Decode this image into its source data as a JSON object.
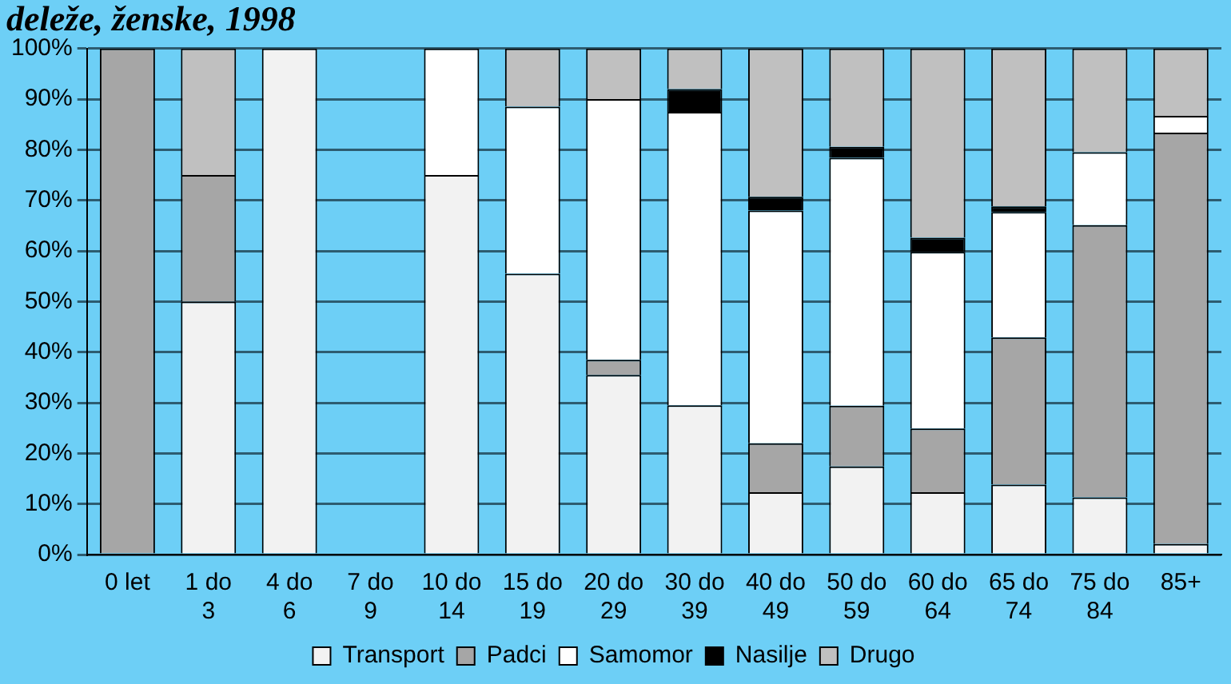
{
  "chart_data": {
    "type": "bar",
    "title": "deleže, ženske, 1998",
    "stacked": true,
    "categories": [
      "0 let",
      "1 do 3",
      "4 do 6",
      "7 do 9",
      "10 do 14",
      "15 do 19",
      "20 do 29",
      "30 do 39",
      "40 do 49",
      "50 do 59",
      "60 do 64",
      "65 do 74",
      "75 do 84",
      "85+"
    ],
    "series": [
      {
        "name": "Transport",
        "color": "#f2f2f2",
        "values": [
          0,
          50,
          100,
          0,
          75,
          55.5,
          35.5,
          29.5,
          12.3,
          17.4,
          12.3,
          13.8,
          11.3,
          2.1
        ]
      },
      {
        "name": "Padci",
        "color": "#a6a6a6",
        "values": [
          100,
          25,
          0,
          0,
          0,
          0,
          3,
          0,
          9.7,
          12,
          12.6,
          29.1,
          53.8,
          81.3
        ]
      },
      {
        "name": "Samomor",
        "color": "#ffffff",
        "values": [
          0,
          0,
          0,
          0,
          25,
          33,
          51.5,
          58,
          46,
          49,
          34.9,
          24.8,
          14.4,
          3.3
        ]
      },
      {
        "name": "Nasilje",
        "color": "#000000",
        "values": [
          0,
          0,
          0,
          0,
          0,
          0,
          0,
          4.5,
          2.7,
          2.2,
          2.8,
          1.1,
          0,
          0
        ]
      },
      {
        "name": "Drugo",
        "color": "#c0c0c0",
        "values": [
          0,
          25,
          0,
          0,
          0,
          11.5,
          10,
          8,
          29.3,
          19.4,
          37.4,
          31.2,
          20.5,
          13.3
        ]
      }
    ],
    "ylim": [
      0,
      100
    ],
    "yticks": [
      {
        "value": 0,
        "label": "0%"
      },
      {
        "value": 10,
        "label": "10%"
      },
      {
        "value": 20,
        "label": "20%"
      },
      {
        "value": 30,
        "label": "30%"
      },
      {
        "value": 40,
        "label": "40%"
      },
      {
        "value": 50,
        "label": "50%"
      },
      {
        "value": 60,
        "label": "60%"
      },
      {
        "value": 70,
        "label": "70%"
      },
      {
        "value": 80,
        "label": "80%"
      },
      {
        "value": 90,
        "label": "90%"
      },
      {
        "value": 100,
        "label": "100%"
      }
    ],
    "grid": "y",
    "legend": "bottom"
  }
}
